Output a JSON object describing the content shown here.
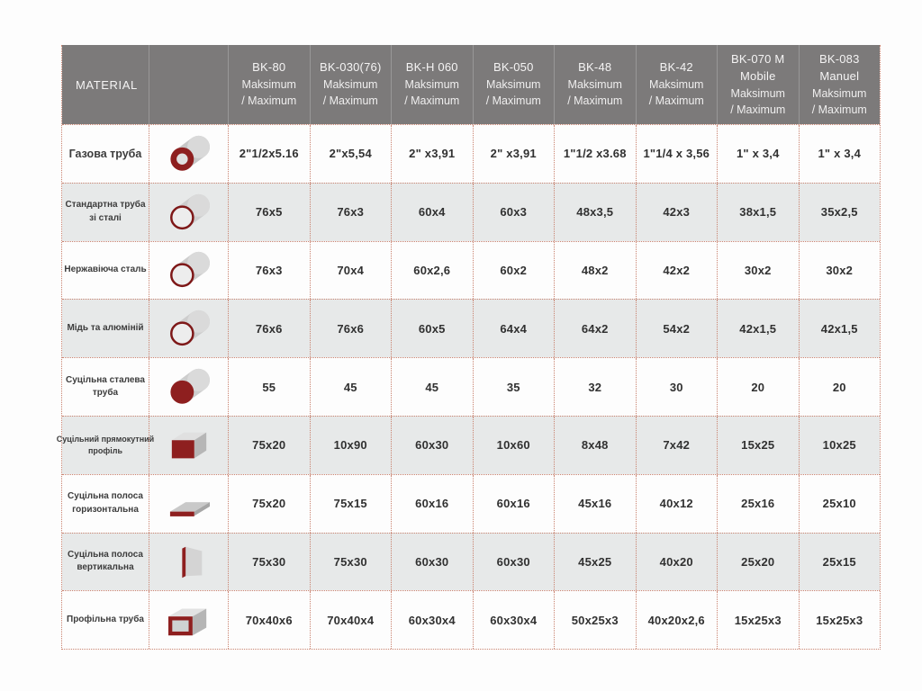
{
  "colors": {
    "header_bg": "#7c7a7a",
    "header_text": "#f5f4f4",
    "row_bg": "#fdfdfd",
    "row_alt_bg": "#e7e9e9",
    "grid_dotted": "#c9826f",
    "accent_red": "#8e1f1f"
  },
  "table": {
    "material_header": "MATERIAL",
    "columns": [
      {
        "name_lines": [
          "BK-80"
        ],
        "sub_lines": [
          "Maksimum",
          "/ Maximum"
        ]
      },
      {
        "name_lines": [
          "BK-030(76)"
        ],
        "sub_lines": [
          "Maksimum",
          "/ Maximum"
        ]
      },
      {
        "name_lines": [
          "BK-H 060"
        ],
        "sub_lines": [
          "Maksimum",
          "/ Maximum"
        ]
      },
      {
        "name_lines": [
          "BK-050"
        ],
        "sub_lines": [
          "Maksimum",
          "/ Maximum"
        ]
      },
      {
        "name_lines": [
          "BK-48"
        ],
        "sub_lines": [
          "Maksimum",
          "/ Maximum"
        ]
      },
      {
        "name_lines": [
          "BK-42"
        ],
        "sub_lines": [
          "Maksimum",
          "/ Maximum"
        ]
      },
      {
        "name_lines": [
          "BK-070 M",
          "Mobile"
        ],
        "sub_lines": [
          "Maksimum",
          "/ Maximum"
        ]
      },
      {
        "name_lines": [
          "BK-083",
          "Manuel"
        ],
        "sub_lines": [
          "Maksimum",
          "/ Maximum"
        ]
      }
    ],
    "rows": [
      {
        "material_lines": [
          "Газова труба"
        ],
        "emphasis": true,
        "icon": "gas-pipe-icon",
        "shape": "thick-ring-pipe",
        "values": [
          "2\"1/2x5.16",
          "2\"x5,54",
          "2\" x3,91",
          "2\" x3,91",
          "1\"1/2 x3.68",
          "1\"1/4 x 3,56",
          "1\" x 3,4",
          "1\" x 3,4"
        ]
      },
      {
        "material_lines": [
          "Стандартна труба",
          "зі сталі"
        ],
        "icon": "standard-steel-pipe-icon",
        "shape": "thin-ring-pipe",
        "values": [
          "76x5",
          "76x3",
          "60x4",
          "60x3",
          "48x3,5",
          "42x3",
          "38x1,5",
          "35x2,5"
        ]
      },
      {
        "material_lines": [
          "Нержавіюча сталь"
        ],
        "icon": "stainless-steel-pipe-icon",
        "shape": "thin-ring-pipe",
        "values": [
          "76x3",
          "70x4",
          "60x2,6",
          "60x2",
          "48x2",
          "42x2",
          "30x2",
          "30x2"
        ]
      },
      {
        "material_lines": [
          "Мідь та алюміній"
        ],
        "icon": "copper-aluminum-pipe-icon",
        "shape": "thin-ring-pipe",
        "values": [
          "76x6",
          "76x6",
          "60x5",
          "64x4",
          "64x2",
          "54x2",
          "42x1,5",
          "42x1,5"
        ]
      },
      {
        "material_lines": [
          "Суцільна сталева",
          "труба"
        ],
        "icon": "solid-steel-rod-icon",
        "shape": "solid-rod",
        "values": [
          "55",
          "45",
          "45",
          "35",
          "32",
          "30",
          "20",
          "20"
        ]
      },
      {
        "material_lines": [
          "Суцільний прямокутний",
          "профіль"
        ],
        "icon": "solid-rectangular-bar-icon",
        "shape": "solid-box",
        "values": [
          "75x20",
          "10x90",
          "60x30",
          "10x60",
          "8x48",
          "7x42",
          "15x25",
          "10x25"
        ]
      },
      {
        "material_lines": [
          "Суцільна полоса",
          "горизонтальна"
        ],
        "icon": "flat-strip-horizontal-icon",
        "shape": "strip-horizontal",
        "values": [
          "75x20",
          "75x15",
          "60x16",
          "60x16",
          "45x16",
          "40x12",
          "25x16",
          "25x10"
        ]
      },
      {
        "material_lines": [
          "Суцільна полоса",
          "вертикальна"
        ],
        "icon": "flat-strip-vertical-icon",
        "shape": "strip-vertical",
        "values": [
          "75x30",
          "75x30",
          "60x30",
          "60x30",
          "45x25",
          "40x20",
          "25x20",
          "25x15"
        ]
      },
      {
        "material_lines": [
          "Профільна труба"
        ],
        "icon": "profile-tube-icon",
        "shape": "rect-tube",
        "values": [
          "70x40x6",
          "70x40x4",
          "60x30x4",
          "60x30x4",
          "50x25x3",
          "40x20x2,6",
          "15x25x3",
          "15x25x3"
        ]
      }
    ]
  }
}
